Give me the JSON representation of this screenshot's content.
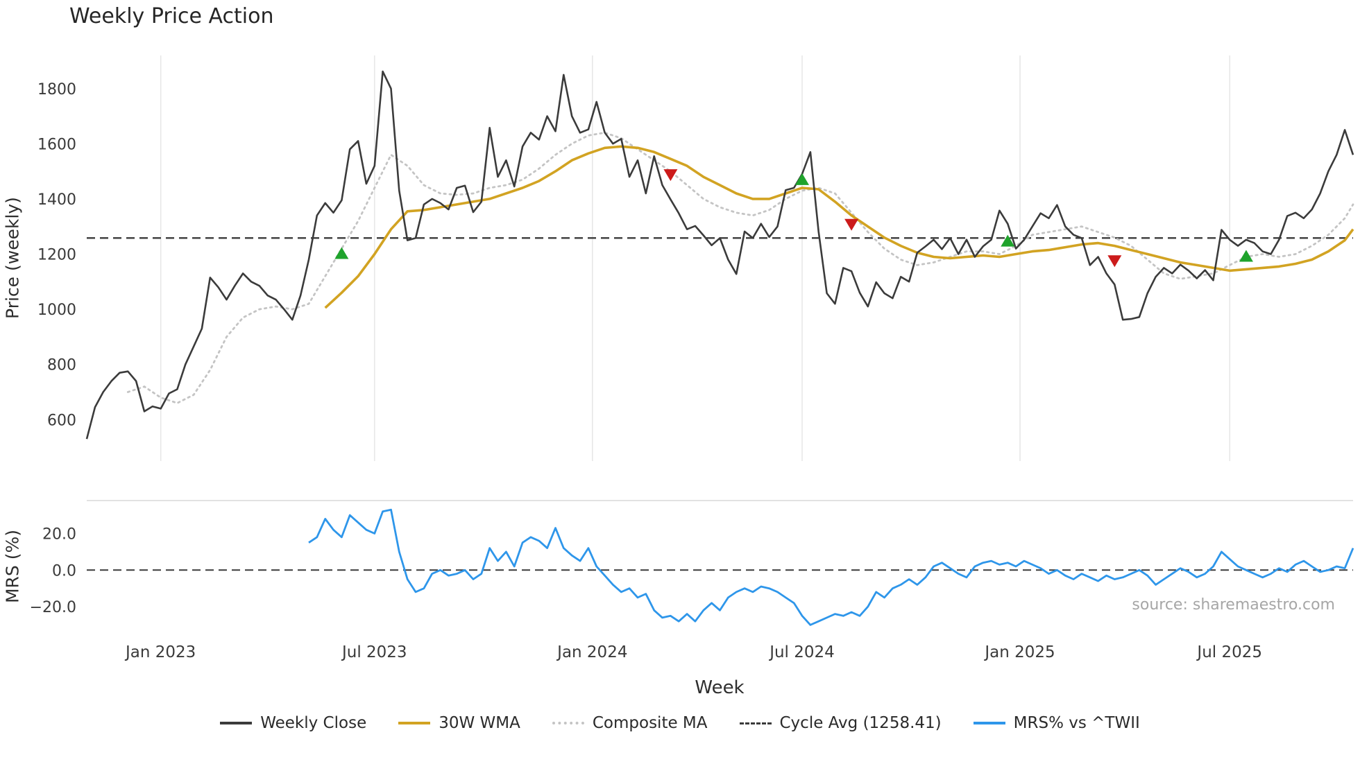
{
  "chart_data": {
    "type": "line",
    "title": "Weekly Price Action",
    "xlabel": "Week",
    "ylabel_price": "Price (weekly)",
    "ylabel_mrs": "MRS (%)",
    "source": "source: sharemaestro.com",
    "legend": [
      "Weekly Close",
      "30W WMA",
      "Composite MA",
      "Cycle Avg (1258.41)",
      "MRS% vs ^TWII"
    ],
    "legend_position": "bottom-center",
    "grid": "vertical-only",
    "x_domain": [
      0,
      154
    ],
    "x_ticks": [
      {
        "pos": 9,
        "label": "Jan 2023"
      },
      {
        "pos": 35,
        "label": "Jul 2023"
      },
      {
        "pos": 61.5,
        "label": "Jan 2024"
      },
      {
        "pos": 87,
        "label": "Jul 2024"
      },
      {
        "pos": 113.5,
        "label": "Jan 2025"
      },
      {
        "pos": 139,
        "label": "Jul 2025"
      }
    ],
    "price_panel": {
      "ylim": [
        450,
        1920
      ],
      "yticks": [
        {
          "v": 600,
          "label": "600"
        },
        {
          "v": 800,
          "label": "800"
        },
        {
          "v": 1000,
          "label": "1000"
        },
        {
          "v": 1200,
          "label": "1200"
        },
        {
          "v": 1400,
          "label": "1400"
        },
        {
          "v": 1600,
          "label": "1600"
        },
        {
          "v": 1800,
          "label": "1800"
        }
      ],
      "cycle_avg": 1258.41,
      "weekly_close": {
        "x_start": 0,
        "values": [
          530,
          645,
          700,
          740,
          770,
          775,
          740,
          630,
          648,
          640,
          695,
          710,
          800,
          865,
          930,
          1115,
          1080,
          1035,
          1085,
          1130,
          1100,
          1085,
          1050,
          1035,
          1000,
          962,
          1050,
          1180,
          1340,
          1385,
          1350,
          1395,
          1580,
          1610,
          1455,
          1520,
          1862,
          1800,
          1430,
          1250,
          1258,
          1380,
          1400,
          1385,
          1362,
          1440,
          1448,
          1352,
          1390,
          1658,
          1480,
          1540,
          1445,
          1590,
          1640,
          1615,
          1700,
          1645,
          1850,
          1700,
          1640,
          1652,
          1752,
          1640,
          1600,
          1618,
          1480,
          1540,
          1420,
          1555,
          1450,
          1398,
          1348,
          1290,
          1302,
          1268,
          1232,
          1258,
          1180,
          1128,
          1282,
          1258,
          1310,
          1262,
          1300,
          1432,
          1440,
          1490,
          1570,
          1282,
          1058,
          1020,
          1150,
          1138,
          1060,
          1010,
          1098,
          1058,
          1040,
          1118,
          1100,
          1205,
          1228,
          1252,
          1218,
          1258,
          1200,
          1252,
          1190,
          1228,
          1252,
          1358,
          1310,
          1220,
          1252,
          1300,
          1348,
          1330,
          1378,
          1300,
          1270,
          1258,
          1160,
          1190,
          1130,
          1090,
          962,
          965,
          972,
          1058,
          1118,
          1150,
          1130,
          1162,
          1140,
          1112,
          1142,
          1105,
          1288,
          1252,
          1230,
          1252,
          1240,
          1210,
          1200,
          1252,
          1338,
          1350,
          1330,
          1362,
          1420,
          1500,
          1560,
          1650,
          1560
        ]
      },
      "wma30": {
        "x": [
          29,
          31,
          33,
          35,
          37,
          39,
          41,
          45,
          49,
          53,
          55,
          57,
          59,
          61,
          63,
          65,
          67,
          69,
          71,
          73,
          75,
          77,
          79,
          81,
          83,
          85,
          87,
          89,
          91,
          93,
          95,
          97,
          99,
          101,
          103,
          105,
          107,
          109,
          111,
          113,
          115,
          117,
          119,
          121,
          123,
          125,
          127,
          129,
          131,
          133,
          135,
          137,
          139,
          141,
          143,
          145,
          147,
          149,
          151,
          153,
          154
        ],
        "values": [
          1005,
          1060,
          1120,
          1200,
          1290,
          1355,
          1360,
          1380,
          1400,
          1440,
          1465,
          1500,
          1540,
          1565,
          1585,
          1590,
          1585,
          1570,
          1545,
          1520,
          1480,
          1450,
          1420,
          1400,
          1400,
          1420,
          1440,
          1435,
          1390,
          1340,
          1300,
          1260,
          1230,
          1205,
          1190,
          1185,
          1190,
          1195,
          1190,
          1200,
          1210,
          1215,
          1225,
          1235,
          1240,
          1230,
          1215,
          1200,
          1185,
          1170,
          1160,
          1150,
          1140,
          1145,
          1150,
          1155,
          1165,
          1180,
          1210,
          1250,
          1290
        ]
      },
      "composite_ma": {
        "x": [
          5,
          7,
          9,
          11,
          13,
          15,
          17,
          19,
          21,
          23,
          25,
          27,
          29,
          31,
          33,
          35,
          37,
          39,
          41,
          43,
          45,
          47,
          49,
          51,
          53,
          55,
          57,
          59,
          61,
          63,
          65,
          67,
          69,
          71,
          73,
          75,
          77,
          79,
          81,
          83,
          85,
          87,
          89,
          91,
          93,
          95,
          97,
          99,
          101,
          103,
          105,
          107,
          109,
          111,
          113,
          115,
          117,
          119,
          121,
          123,
          125,
          127,
          129,
          131,
          133,
          135,
          137,
          139,
          141,
          143,
          145,
          147,
          149,
          151,
          153,
          154
        ],
        "values": [
          700,
          720,
          680,
          660,
          690,
          780,
          900,
          970,
          1000,
          1010,
          1000,
          1020,
          1120,
          1220,
          1320,
          1440,
          1560,
          1520,
          1450,
          1420,
          1415,
          1420,
          1440,
          1450,
          1470,
          1510,
          1560,
          1600,
          1630,
          1640,
          1620,
          1580,
          1540,
          1500,
          1450,
          1400,
          1370,
          1350,
          1340,
          1360,
          1400,
          1430,
          1440,
          1420,
          1350,
          1280,
          1220,
          1180,
          1160,
          1170,
          1190,
          1210,
          1210,
          1200,
          1230,
          1270,
          1280,
          1290,
          1300,
          1280,
          1260,
          1230,
          1180,
          1130,
          1110,
          1120,
          1130,
          1160,
          1190,
          1200,
          1190,
          1200,
          1230,
          1270,
          1330,
          1380
        ]
      },
      "signals_buy": [
        {
          "x": 31,
          "y": 1200
        },
        {
          "x": 87,
          "y": 1468
        },
        {
          "x": 112,
          "y": 1245
        },
        {
          "x": 141,
          "y": 1190
        }
      ],
      "signals_sell": [
        {
          "x": 71,
          "y": 1490
        },
        {
          "x": 93,
          "y": 1310
        },
        {
          "x": 125,
          "y": 1178
        }
      ]
    },
    "mrs_panel": {
      "ylim": [
        -34,
        38
      ],
      "yticks": [
        {
          "v": 20,
          "label": "20.0"
        },
        {
          "v": 0,
          "label": "0.0"
        },
        {
          "v": -20,
          "label": "−20.0"
        }
      ],
      "zero_line": 0,
      "mrs": {
        "x_start": 27,
        "values": [
          15,
          18,
          28,
          22,
          18,
          30,
          26,
          22,
          20,
          32,
          33,
          10,
          -5,
          -12,
          -10,
          -2,
          0,
          -3,
          -2,
          0,
          -5,
          -2,
          12,
          5,
          10,
          2,
          15,
          18,
          16,
          12,
          23,
          12,
          8,
          5,
          12,
          2,
          -3,
          -8,
          -12,
          -10,
          -15,
          -13,
          -22,
          -26,
          -25,
          -28,
          -24,
          -28,
          -22,
          -18,
          -22,
          -15,
          -12,
          -10,
          -12,
          -9,
          -10,
          -12,
          -15,
          -18,
          -25,
          -30,
          -28,
          -26,
          -24,
          -25,
          -23,
          -25,
          -20,
          -12,
          -15,
          -10,
          -8,
          -5,
          -8,
          -4,
          2,
          4,
          1,
          -2,
          -4,
          2,
          4,
          5,
          3,
          4,
          2,
          5,
          3,
          1,
          -2,
          0,
          -3,
          -5,
          -2,
          -4,
          -6,
          -3,
          -5,
          -4,
          -2,
          0,
          -3,
          -8,
          -5,
          -2,
          1,
          -1,
          -4,
          -2,
          2,
          10,
          6,
          2,
          0,
          -2,
          -4,
          -2,
          1,
          -1,
          3,
          5,
          2,
          -1,
          0,
          2,
          1,
          12
        ]
      }
    },
    "colors": {
      "weekly_close": "#3b3b3b",
      "wma30": "#d2a322",
      "composite_ma": "#c4c4c4",
      "cycle_avg": "#3a3a3a",
      "mrs": "#2e96ea",
      "buy": "#1fa32c",
      "sell": "#cc1b1b",
      "grid": "#e7e7e7",
      "tick_label": "#3a3a3a"
    }
  }
}
